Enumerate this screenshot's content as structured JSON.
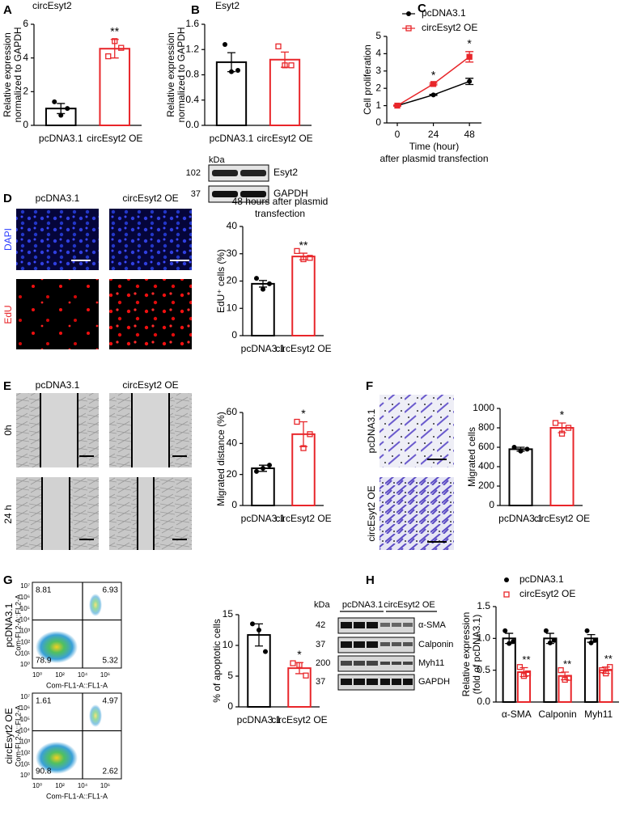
{
  "chart_data": [
    {
      "type": "bar",
      "title": "circEsyt2",
      "ylabel": [
        "Relative expression",
        "normalized to GAPDH"
      ],
      "categories": [
        "pcDNA3.1",
        "circEsyt2 OE"
      ],
      "values": [
        1.0,
        4.55
      ],
      "errors": [
        0.3,
        0.55
      ],
      "points": [
        [
          1.4,
          0.6,
          1.0
        ],
        [
          4.1,
          5.0,
          4.6
        ]
      ],
      "colors": [
        "#000000",
        "#e8262a"
      ],
      "markers": [
        "circle",
        "square"
      ],
      "annotations": [
        null,
        "**"
      ],
      "ylim": [
        0,
        6
      ],
      "yticks": [
        0,
        2,
        4,
        6
      ]
    },
    {
      "type": "bar",
      "title": "Esyt2",
      "ylabel": [
        "Relative expression",
        "normalized to GAPDH"
      ],
      "categories": [
        "pcDNA3.1",
        "circEsyt2 OE"
      ],
      "values": [
        1.0,
        1.04
      ],
      "errors": [
        0.15,
        0.12
      ],
      "points": [
        [
          1.28,
          0.85,
          0.87
        ],
        [
          1.25,
          0.95,
          0.95
        ]
      ],
      "colors": [
        "#000000",
        "#e8262a"
      ],
      "markers": [
        "circle",
        "square"
      ],
      "ylim": [
        0,
        1.6
      ],
      "yticks": [
        {
          "value": 0,
          "label": "0.0"
        },
        {
          "value": 0.4,
          "label": "0.4"
        },
        {
          "value": 0.8,
          "label": "0.8"
        },
        {
          "value": 1.2,
          "label": "1.2"
        },
        {
          "value": 1.6,
          "label": "1.6"
        }
      ]
    },
    {
      "type": "line",
      "ylabel": "Cell proliferation",
      "xlabel": [
        "Time (hour)",
        "after plasmid transfection"
      ],
      "x": [
        0,
        24,
        48
      ],
      "series": [
        {
          "name": "pcDNA3.1",
          "color": "#000000",
          "marker": "circle",
          "values": [
            1,
            1.62,
            2.4
          ],
          "errors": [
            0.02,
            0.03,
            0.18
          ]
        },
        {
          "name": "circEsyt2 OE",
          "color": "#e8262a",
          "marker": "square",
          "values": [
            1,
            2.25,
            3.82
          ],
          "errors": [
            0.03,
            0.05,
            0.3
          ]
        }
      ],
      "annotations": [
        null,
        "*",
        "*"
      ],
      "xlim": [
        -7,
        56
      ],
      "xticks": [
        0,
        24,
        48
      ],
      "ylim": [
        0,
        5
      ],
      "yticks": [
        0,
        1,
        2,
        3,
        4,
        5
      ]
    },
    {
      "type": "bar",
      "title": [
        "48 hours after plasmid",
        "transfection"
      ],
      "ylabel": "EdU⁺ cells (%)",
      "categories": [
        "pcDNA3.1",
        "circEsyt2 OE"
      ],
      "values": [
        19,
        29
      ],
      "errors": [
        1.2,
        1.2
      ],
      "points": [
        [
          21,
          17,
          19
        ],
        [
          31,
          28,
          28.5
        ]
      ],
      "colors": [
        "#000000",
        "#e8262a"
      ],
      "markers": [
        "circle",
        "square"
      ],
      "annotations": [
        null,
        "**"
      ],
      "ylim": [
        0,
        40
      ],
      "yticks": [
        0,
        10,
        20,
        30,
        40
      ]
    },
    {
      "type": "bar",
      "ylabel": "Migrated distance (%)",
      "categories": [
        "pcDNA3.1",
        "circEsyt2 OE"
      ],
      "values": [
        24,
        46
      ],
      "errors": [
        2,
        8
      ],
      "points": [
        [
          22,
          24,
          26
        ],
        [
          54,
          37,
          46
        ]
      ],
      "colors": [
        "#000000",
        "#e8262a"
      ],
      "markers": [
        "circle",
        "square"
      ],
      "annotations": [
        null,
        "*"
      ],
      "ylim": [
        0,
        60
      ],
      "yticks": [
        0,
        20,
        40,
        60
      ]
    },
    {
      "type": "bar",
      "ylabel": "Migrated cells",
      "categories": [
        "pcDNA3.1",
        "circEsyt2 OE"
      ],
      "values": [
        580,
        800
      ],
      "errors": [
        20,
        50
      ],
      "points": [
        [
          600,
          560,
          580
        ],
        [
          850,
          740,
          800
        ]
      ],
      "colors": [
        "#000000",
        "#e8262a"
      ],
      "markers": [
        "circle",
        "square"
      ],
      "annotations": [
        null,
        "*"
      ],
      "ylim": [
        0,
        1000
      ],
      "yticks": [
        0,
        200,
        400,
        600,
        800,
        1000
      ]
    },
    {
      "type": "bar",
      "ylabel": "% of apoptotic cells",
      "categories": [
        "pcDNA3.1",
        "circEsyt2 OE"
      ],
      "values": [
        11.7,
        6.3
      ],
      "errors": [
        1.8,
        0.9
      ],
      "points": [
        [
          13.5,
          12.5,
          9
        ],
        [
          7.1,
          6.8,
          5.1
        ]
      ],
      "colors": [
        "#000000",
        "#e8262a"
      ],
      "markers": [
        "circle",
        "square"
      ],
      "annotations": [
        null,
        "*"
      ],
      "ylim": [
        0,
        15
      ],
      "yticks": [
        0,
        5,
        10,
        15
      ]
    },
    {
      "type": "grouped_bar",
      "ylabel": [
        "Relative expression",
        "(fold of pcDNA3.1)"
      ],
      "categories": [
        "α-SMA",
        "Calponin",
        "Myh11"
      ],
      "series": [
        {
          "name": "pcDNA3.1",
          "color": "#000000",
          "marker": "circle",
          "values": [
            1,
            1,
            1
          ],
          "errors": [
            0.08,
            0.08,
            0.06
          ],
          "points": [
            [
              1.12,
              0.92,
              0.95
            ],
            [
              1.12,
              0.93,
              0.97
            ],
            [
              1.12,
              0.93,
              0.97
            ]
          ]
        },
        {
          "name": "circEsyt2 OE",
          "color": "#e8262a",
          "marker": "square",
          "values": [
            0.47,
            0.41,
            0.5
          ],
          "errors": [
            0.07,
            0.06,
            0.05
          ],
          "points": [
            [
              0.55,
              0.41,
              0.45
            ],
            [
              0.5,
              0.35,
              0.38
            ],
            [
              0.5,
              0.45,
              0.55
            ]
          ],
          "annotations": [
            "**",
            "**",
            "**"
          ]
        }
      ],
      "ylim": [
        0,
        1.5
      ],
      "yticks": [
        {
          "value": 0,
          "label": "0.0"
        },
        {
          "value": 0.5,
          "label": "0.5"
        },
        {
          "value": 1,
          "label": "1.0"
        },
        {
          "value": 1.5,
          "label": "1.5"
        }
      ]
    }
  ],
  "figure": {
    "panel_letters": [
      "A",
      "B",
      "C",
      "D",
      "E",
      "F",
      "G",
      "H"
    ],
    "B_blot": {
      "unit": "kDa",
      "rows": [
        {
          "kda": 102,
          "label": "Esyt2"
        },
        {
          "kda": 37,
          "label": "GAPDH"
        }
      ]
    },
    "D": {
      "columns": [
        "pcDNA3.1",
        "circEsyt2 OE"
      ],
      "rows": [
        "DAPI",
        "EdU"
      ]
    },
    "E": {
      "columns": [
        "pcDNA3.1",
        "circEsyt2 OE"
      ],
      "rows": [
        "0h",
        "24 h"
      ]
    },
    "F": {
      "rows": [
        "pcDNA3.1",
        "circEsyt2 OE"
      ]
    },
    "G": {
      "ylabel": "Com-FL2-A::FL2-A",
      "xlabel": "Com-FL1-A::FL1-A",
      "yticks": [
        "10⁷",
        "10⁶",
        "10⁵",
        "10⁴",
        "10³",
        "10²",
        "10¹",
        "10⁰"
      ],
      "xticks": [
        "10⁰",
        "10²",
        "10⁴",
        "10⁶"
      ],
      "plots": [
        {
          "label": "pcDNA3.1",
          "quadrants": [
            8.81,
            6.93,
            78.9,
            5.32
          ]
        },
        {
          "label": "circEsyt2 OE",
          "quadrants": [
            1.61,
            4.97,
            90.8,
            2.62
          ]
        }
      ]
    },
    "H_blot": {
      "unit": "kDa",
      "groups": [
        "pcDNA3.1",
        "circEsyt2 OE"
      ],
      "rows": [
        {
          "kda": 42,
          "label": "α-SMA"
        },
        {
          "kda": 37,
          "label": "Calponin"
        },
        {
          "kda": 200,
          "label": "Myh11"
        },
        {
          "kda": 37,
          "label": "GAPDH"
        }
      ]
    }
  }
}
